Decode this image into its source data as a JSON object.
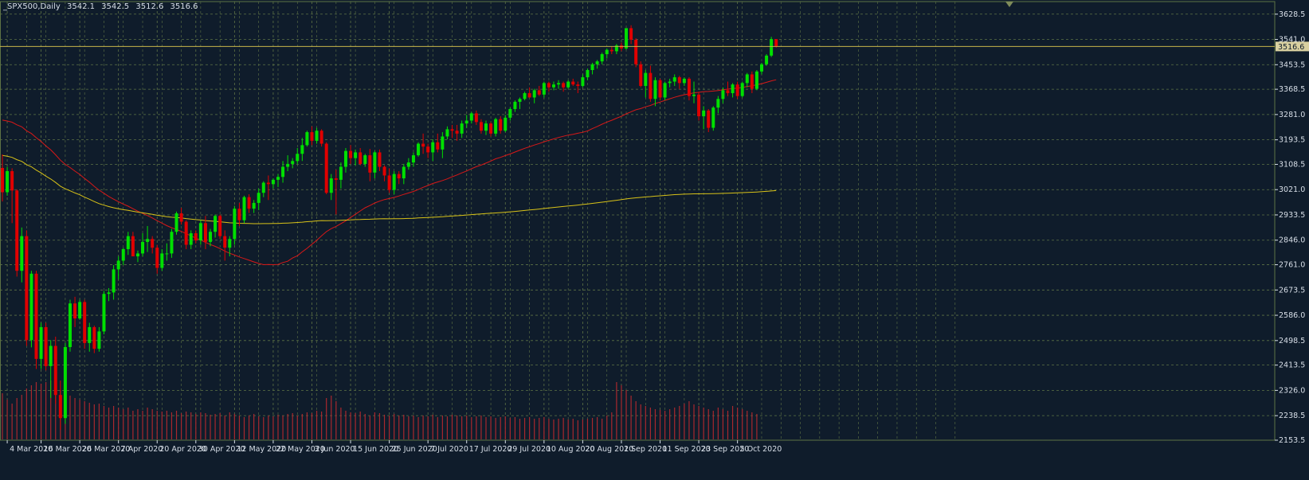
{
  "header": {
    "symbol": "_SPX500,Daily",
    "open": "3542.1",
    "high": "3542.5",
    "low": "3512.6",
    "close": "3516.6"
  },
  "colors": {
    "background": "#0f1c2b",
    "grid": "#5e7345",
    "bull": "#00e000",
    "bear": "#e00000",
    "ma_fast": "#d81818",
    "ma_slow": "#d8c218",
    "volume": "#a8282e",
    "axis_text": "#d8dfe8",
    "price_line": "#c8b44a",
    "price_tag": "#d8d0a0"
  },
  "chart_data": {
    "type": "candlestick",
    "title": "",
    "symbol": "_SPX500",
    "timeframe": "Daily",
    "ylim": [
      2153.5,
      3672
    ],
    "y_ticks": [
      "3628.5",
      "3541.0",
      "3453.5",
      "3368.5",
      "3281.0",
      "3193.5",
      "3108.5",
      "3021.0",
      "2933.5",
      "2846.0",
      "2761.0",
      "2673.5",
      "2586.0",
      "2498.5",
      "2413.5",
      "2326.0",
      "2238.5",
      "2153.5"
    ],
    "x_ticks": [
      {
        "label": "4 Mar 2020",
        "index": 1
      },
      {
        "label": "16 Mar 2020",
        "index": 8
      },
      {
        "label": "26 Mar 2020",
        "index": 16
      },
      {
        "label": "7 Apr 2020",
        "index": 24
      },
      {
        "label": "20 Apr 2020",
        "index": 32
      },
      {
        "label": "30 Apr 2020",
        "index": 40
      },
      {
        "label": "12 May 2020",
        "index": 48
      },
      {
        "label": "22 May 2020",
        "index": 56
      },
      {
        "label": "3 Jun 2020",
        "index": 64
      },
      {
        "label": "15 Jun 2020",
        "index": 72
      },
      {
        "label": "25 Jun 2020",
        "index": 80
      },
      {
        "label": "7 Jul 2020",
        "index": 88
      },
      {
        "label": "17 Jul 2020",
        "index": 96
      },
      {
        "label": "29 Jul 2020",
        "index": 104
      },
      {
        "label": "10 Aug 2020",
        "index": 112
      },
      {
        "label": "20 Aug 2020",
        "index": 120
      },
      {
        "label": "1 Sep 2020",
        "index": 128
      },
      {
        "label": "11 Sep 2020",
        "index": 136
      },
      {
        "label": "23 Sep 2020",
        "index": 144
      },
      {
        "label": "5 Oct 2020",
        "index": 152
      }
    ],
    "current_price": "3516.6",
    "candles": [
      [
        3096,
        3143,
        2980,
        3012
      ],
      [
        3012,
        3100,
        3000,
        3085
      ],
      [
        3085,
        3095,
        2905,
        3018
      ],
      [
        3018,
        3022,
        2720,
        2740
      ],
      [
        2740,
        2890,
        2700,
        2860
      ],
      [
        2860,
        2880,
        2480,
        2500
      ],
      [
        2500,
        2740,
        2475,
        2730
      ],
      [
        2730,
        2740,
        2400,
        2435
      ],
      [
        2435,
        2560,
        2400,
        2545
      ],
      [
        2545,
        2560,
        2395,
        2410
      ],
      [
        2410,
        2500,
        2300,
        2480
      ],
      [
        2480,
        2512,
        2280,
        2310
      ],
      [
        2310,
        2360,
        2190,
        2230
      ],
      [
        2230,
        2490,
        2210,
        2476
      ],
      [
        2476,
        2640,
        2460,
        2627
      ],
      [
        2627,
        2650,
        2545,
        2575
      ],
      [
        2575,
        2640,
        2570,
        2632
      ],
      [
        2632,
        2640,
        2470,
        2490
      ],
      [
        2490,
        2560,
        2460,
        2545
      ],
      [
        2545,
        2550,
        2455,
        2470
      ],
      [
        2470,
        2545,
        2460,
        2530
      ],
      [
        2530,
        2670,
        2520,
        2660
      ],
      [
        2660,
        2680,
        2635,
        2665
      ],
      [
        2665,
        2760,
        2640,
        2745
      ],
      [
        2745,
        2790,
        2710,
        2775
      ],
      [
        2775,
        2820,
        2760,
        2815
      ],
      [
        2815,
        2875,
        2795,
        2860
      ],
      [
        2860,
        2875,
        2790,
        2790
      ],
      [
        2790,
        2810,
        2770,
        2800
      ],
      [
        2800,
        2870,
        2790,
        2840
      ],
      [
        2840,
        2895,
        2805,
        2850
      ],
      [
        2850,
        2860,
        2800,
        2820
      ],
      [
        2820,
        2830,
        2730,
        2750
      ],
      [
        2750,
        2815,
        2740,
        2800
      ],
      [
        2800,
        2835,
        2775,
        2800
      ],
      [
        2800,
        2885,
        2785,
        2875
      ],
      [
        2875,
        2945,
        2865,
        2939
      ],
      [
        2939,
        2958,
        2900,
        2910
      ],
      [
        2910,
        2915,
        2815,
        2830
      ],
      [
        2830,
        2880,
        2815,
        2870
      ],
      [
        2870,
        2880,
        2835,
        2845
      ],
      [
        2845,
        2915,
        2830,
        2905
      ],
      [
        2905,
        2930,
        2815,
        2840
      ],
      [
        2840,
        2885,
        2825,
        2875
      ],
      [
        2875,
        2935,
        2855,
        2930
      ],
      [
        2930,
        2935,
        2850,
        2860
      ],
      [
        2860,
        2880,
        2775,
        2820
      ],
      [
        2820,
        2860,
        2790,
        2850
      ],
      [
        2850,
        2965,
        2830,
        2955
      ],
      [
        2955,
        2975,
        2895,
        2915
      ],
      [
        2915,
        3000,
        2905,
        2995
      ],
      [
        2995,
        3005,
        2940,
        2955
      ],
      [
        2955,
        2985,
        2940,
        2975
      ],
      [
        2975,
        3025,
        2950,
        3010
      ],
      [
        3010,
        3050,
        2995,
        3045
      ],
      [
        3045,
        3070,
        2985,
        3040
      ],
      [
        3040,
        3060,
        3025,
        3055
      ],
      [
        3055,
        3075,
        3030,
        3065
      ],
      [
        3065,
        3120,
        3045,
        3100
      ],
      [
        3100,
        3140,
        3085,
        3110
      ],
      [
        3110,
        3130,
        3095,
        3120
      ],
      [
        3120,
        3165,
        3110,
        3145
      ],
      [
        3145,
        3200,
        3120,
        3175
      ],
      [
        3175,
        3225,
        3170,
        3220
      ],
      [
        3220,
        3240,
        3175,
        3190
      ],
      [
        3190,
        3235,
        3180,
        3225
      ],
      [
        3225,
        3230,
        3170,
        3180
      ],
      [
        3180,
        3185,
        3005,
        3010
      ],
      [
        3010,
        3075,
        2985,
        3060
      ],
      [
        3060,
        3090,
        2935,
        3055
      ],
      [
        3055,
        3115,
        3025,
        3100
      ],
      [
        3100,
        3165,
        3080,
        3155
      ],
      [
        3155,
        3175,
        3110,
        3130
      ],
      [
        3130,
        3160,
        3105,
        3150
      ],
      [
        3150,
        3165,
        3105,
        3110
      ],
      [
        3110,
        3145,
        3100,
        3140
      ],
      [
        3140,
        3162,
        3050,
        3080
      ],
      [
        3080,
        3155,
        3060,
        3150
      ],
      [
        3150,
        3160,
        3085,
        3100
      ],
      [
        3100,
        3105,
        3050,
        3070
      ],
      [
        3070,
        3095,
        3010,
        3020
      ],
      [
        3020,
        3085,
        3005,
        3075
      ],
      [
        3075,
        3085,
        3040,
        3060
      ],
      [
        3060,
        3110,
        3040,
        3100
      ],
      [
        3100,
        3130,
        3090,
        3115
      ],
      [
        3115,
        3150,
        3100,
        3140
      ],
      [
        3140,
        3185,
        3135,
        3180
      ],
      [
        3180,
        3215,
        3145,
        3170
      ],
      [
        3170,
        3180,
        3130,
        3150
      ],
      [
        3150,
        3195,
        3120,
        3185
      ],
      [
        3185,
        3215,
        3150,
        3160
      ],
      [
        3160,
        3220,
        3130,
        3205
      ],
      [
        3205,
        3240,
        3195,
        3230
      ],
      [
        3230,
        3245,
        3200,
        3225
      ],
      [
        3225,
        3245,
        3190,
        3215
      ],
      [
        3215,
        3260,
        3200,
        3250
      ],
      [
        3250,
        3280,
        3235,
        3260
      ],
      [
        3260,
        3290,
        3250,
        3285
      ],
      [
        3285,
        3295,
        3245,
        3255
      ],
      [
        3255,
        3265,
        3215,
        3225
      ],
      [
        3225,
        3260,
        3210,
        3250
      ],
      [
        3250,
        3255,
        3205,
        3215
      ],
      [
        3215,
        3270,
        3205,
        3265
      ],
      [
        3265,
        3275,
        3215,
        3225
      ],
      [
        3225,
        3280,
        3220,
        3270
      ],
      [
        3270,
        3305,
        3260,
        3300
      ],
      [
        3300,
        3330,
        3290,
        3325
      ],
      [
        3325,
        3340,
        3300,
        3335
      ],
      [
        3335,
        3360,
        3330,
        3355
      ],
      [
        3355,
        3375,
        3340,
        3340
      ],
      [
        3340,
        3370,
        3320,
        3365
      ],
      [
        3365,
        3380,
        3345,
        3350
      ],
      [
        3350,
        3395,
        3340,
        3390
      ],
      [
        3390,
        3395,
        3360,
        3375
      ],
      [
        3375,
        3395,
        3365,
        3385
      ],
      [
        3385,
        3400,
        3370,
        3390
      ],
      [
        3390,
        3395,
        3360,
        3375
      ],
      [
        3375,
        3400,
        3370,
        3395
      ],
      [
        3395,
        3405,
        3380,
        3385
      ],
      [
        3385,
        3395,
        3355,
        3380
      ],
      [
        3380,
        3420,
        3375,
        3410
      ],
      [
        3410,
        3440,
        3400,
        3435
      ],
      [
        3435,
        3460,
        3420,
        3455
      ],
      [
        3455,
        3470,
        3440,
        3465
      ],
      [
        3465,
        3495,
        3455,
        3490
      ],
      [
        3490,
        3510,
        3475,
        3505
      ],
      [
        3505,
        3515,
        3490,
        3500
      ],
      [
        3500,
        3525,
        3490,
        3520
      ],
      [
        3520,
        3530,
        3500,
        3510
      ],
      [
        3510,
        3580,
        3505,
        3580
      ],
      [
        3580,
        3590,
        3525,
        3540
      ],
      [
        3540,
        3545,
        3445,
        3455
      ],
      [
        3455,
        3465,
        3375,
        3380
      ],
      [
        3380,
        3435,
        3340,
        3425
      ],
      [
        3425,
        3450,
        3325,
        3335
      ],
      [
        3335,
        3410,
        3310,
        3400
      ],
      [
        3400,
        3405,
        3330,
        3340
      ],
      [
        3340,
        3395,
        3330,
        3390
      ],
      [
        3390,
        3405,
        3375,
        3395
      ],
      [
        3395,
        3420,
        3380,
        3410
      ],
      [
        3410,
        3415,
        3370,
        3390
      ],
      [
        3390,
        3410,
        3380,
        3405
      ],
      [
        3405,
        3410,
        3330,
        3345
      ],
      [
        3345,
        3395,
        3320,
        3350
      ],
      [
        3350,
        3360,
        3260,
        3275
      ],
      [
        3275,
        3310,
        3230,
        3295
      ],
      [
        3295,
        3300,
        3220,
        3235
      ],
      [
        3235,
        3310,
        3225,
        3305
      ],
      [
        3305,
        3345,
        3285,
        3335
      ],
      [
        3335,
        3375,
        3320,
        3365
      ],
      [
        3365,
        3395,
        3345,
        3355
      ],
      [
        3355,
        3390,
        3340,
        3385
      ],
      [
        3385,
        3395,
        3335,
        3345
      ],
      [
        3345,
        3395,
        3340,
        3390
      ],
      [
        3390,
        3425,
        3375,
        3420
      ],
      [
        3420,
        3430,
        3355,
        3370
      ],
      [
        3370,
        3435,
        3365,
        3430
      ],
      [
        3430,
        3460,
        3420,
        3455
      ],
      [
        3455,
        3490,
        3450,
        3485
      ],
      [
        3485,
        3550,
        3480,
        3542
      ],
      [
        3542,
        3542.5,
        3512.6,
        3516.6
      ]
    ],
    "volume": [
      58,
      50,
      45,
      52,
      56,
      64,
      68,
      72,
      70,
      72,
      74,
      66,
      62,
      60,
      55,
      52,
      50,
      48,
      46,
      44,
      45,
      42,
      40,
      42,
      40,
      38,
      40,
      36,
      38,
      36,
      40,
      38,
      36,
      35,
      36,
      34,
      36,
      33,
      35,
      34,
      32,
      34,
      33,
      31,
      32,
      33,
      30,
      34,
      32,
      30,
      28,
      30,
      32,
      29,
      28,
      30,
      29,
      31,
      30,
      32,
      33,
      30,
      32,
      34,
      33,
      36,
      35,
      52,
      55,
      48,
      40,
      36,
      34,
      33,
      35,
      32,
      30,
      34,
      33,
      31,
      30,
      32,
      30,
      31,
      29,
      30,
      28,
      30,
      29,
      31,
      28,
      30,
      29,
      31,
      30,
      29,
      30,
      28,
      29,
      30,
      28,
      29,
      27,
      28,
      29,
      27,
      28,
      26,
      27,
      28,
      26,
      27,
      28,
      26,
      25,
      26,
      27,
      25,
      26,
      24,
      25,
      26,
      27,
      28,
      26,
      30,
      34,
      72,
      68,
      62,
      55,
      48,
      44,
      42,
      40,
      38,
      37,
      36,
      38,
      40,
      42,
      45,
      48,
      44,
      42,
      40,
      38,
      36,
      40,
      38,
      36,
      42,
      40,
      38,
      36,
      34,
      32
    ]
  }
}
